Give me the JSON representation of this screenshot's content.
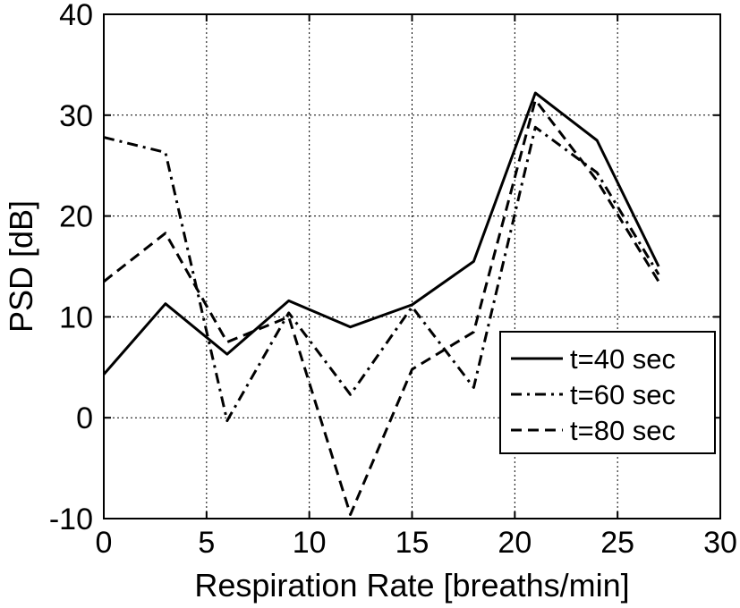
{
  "chart_data": {
    "type": "line",
    "xlabel": "Respiration Rate [breaths/min]",
    "ylabel": "PSD [dB]",
    "xlim": [
      0,
      30
    ],
    "ylim": [
      -10,
      40
    ],
    "xticks": [
      0,
      5,
      10,
      15,
      20,
      25,
      30
    ],
    "yticks": [
      -10,
      0,
      10,
      20,
      30,
      40
    ],
    "grid": true,
    "legend_position": "bottom-right",
    "x": [
      0,
      3,
      6,
      9,
      12,
      15,
      18,
      21,
      24,
      27
    ],
    "series": [
      {
        "name": "t=40 sec",
        "style": "solid",
        "values": [
          4.3,
          11.3,
          6.3,
          11.6,
          9.0,
          11.2,
          15.5,
          32.2,
          27.5,
          15.0
        ]
      },
      {
        "name": "t=60 sec",
        "style": "dashdot",
        "values": [
          27.8,
          26.3,
          -0.3,
          10.4,
          2.3,
          11.0,
          3.0,
          28.8,
          24.3,
          14.2
        ]
      },
      {
        "name": "t=80 sec",
        "style": "dashed",
        "values": [
          13.5,
          18.3,
          7.5,
          10.0,
          -9.6,
          4.8,
          8.5,
          31.5,
          23.5,
          13.5
        ]
      }
    ]
  }
}
